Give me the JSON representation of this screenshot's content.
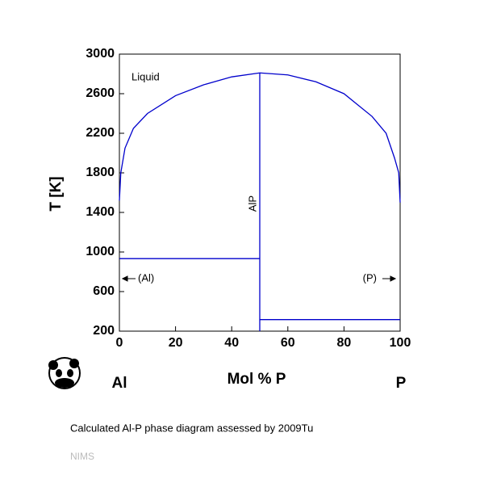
{
  "chart_data": {
    "type": "line",
    "xlabel": "Mol % P",
    "ylabel": "T [K]",
    "x_left_label": "Al",
    "x_right_label": "P",
    "caption": "Calculated Al-P phase diagram assessed by 2009Tu",
    "source": "NIMS",
    "annotations": [
      "Liquid",
      "AlP",
      "(Al)",
      "(P)"
    ],
    "xlim": [
      0,
      100
    ],
    "xticks": [
      0,
      20,
      40,
      60,
      80,
      100
    ],
    "ylim": [
      200,
      3000
    ],
    "yticks": [
      200,
      600,
      1000,
      1400,
      1800,
      2200,
      2600,
      3000
    ],
    "series": [
      {
        "color": "#0000cc",
        "x": [
          0,
          0.5,
          2,
          5,
          10,
          20,
          30,
          40,
          50,
          60,
          70,
          80,
          90,
          95,
          98,
          99.5,
          100
        ],
        "y": [
          1520,
          1800,
          2050,
          2250,
          2400,
          2580,
          2690,
          2770,
          2810,
          2790,
          2720,
          2600,
          2370,
          2200,
          1950,
          1800,
          1500
        ]
      },
      {
        "color": "#0000cc",
        "x": [
          50,
          50
        ],
        "y": [
          200,
          2810
        ]
      },
      {
        "color": "#0000cc",
        "x": [
          0,
          50
        ],
        "y": [
          933,
          933
        ]
      },
      {
        "color": "#0000cc",
        "x": [
          50,
          100
        ],
        "y": [
          317,
          317
        ]
      }
    ]
  }
}
